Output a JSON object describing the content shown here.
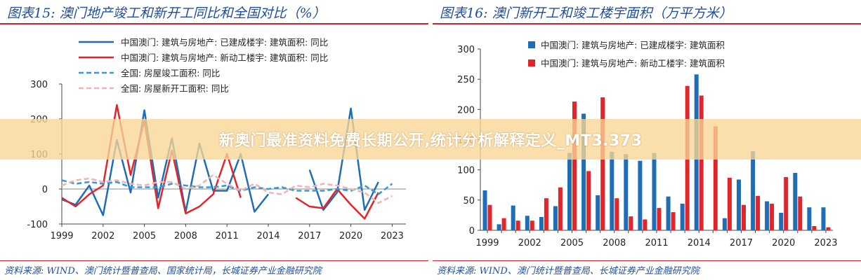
{
  "colors": {
    "blue": "#1f6db5",
    "red": "#e0262b",
    "lightblue": "#3a9ad9",
    "pink": "#f2b3b3"
  },
  "panel_left": {
    "title": "图表15:  澳门地产竣工和新开工同比和全国对比（%）",
    "source": "资料来源:  WIND、澳门统计暨普查局、国家统计局，长城证券产业金融研究院"
  },
  "panel_right": {
    "title": "图表16:  澳门新开工和竣工楼宇面积（万平方米）",
    "source": "资料来源:  WIND、澳门统计暨普查局、长城证券产业金融研究院"
  },
  "watermark": "新奥门最准资料免费长期公开,统计分析解释定义_MT3.373",
  "chart_data": [
    {
      "type": "line",
      "title": "图表15:  澳门地产竣工和新开工同比和全国对比（%）",
      "x": [
        1999,
        2000,
        2001,
        2002,
        2003,
        2004,
        2005,
        2006,
        2007,
        2008,
        2009,
        2010,
        2011,
        2012,
        2013,
        2014,
        2015,
        2016,
        2017,
        2018,
        2019,
        2020,
        2021,
        2022,
        2023
      ],
      "xticks": [
        "1999",
        "2002",
        "2005",
        "2008",
        "2011",
        "2014",
        "2017",
        "2020",
        "2023"
      ],
      "xlim": [
        1999,
        2024
      ],
      "ylim": [
        -100,
        300
      ],
      "yticks": [
        -100,
        0,
        100,
        200,
        300
      ],
      "legend_position": "top",
      "series": [
        {
          "name": "中国澳门: 建筑与房地产: 已建成楼宇: 建筑面积: 同比",
          "color": "#1f6db5",
          "dash": "solid",
          "values": [
            -30,
            -45,
            10,
            -75,
            140,
            -10,
            225,
            -25,
            145,
            -65,
            130,
            -5,
            -5,
            100,
            -65,
            -15,
            null,
            null,
            55,
            -60,
            -10,
            230,
            -60,
            20,
            null
          ]
        },
        {
          "name": "中国澳门: 建筑与房地产: 新动工楼宇: 建筑面积: 同比",
          "color": "#e0262b",
          "dash": "solid",
          "values": [
            -25,
            -50,
            -15,
            10,
            240,
            40,
            195,
            -55,
            110,
            -70,
            -50,
            -15,
            100,
            -25,
            null,
            null,
            null,
            -25,
            -50,
            -55,
            0,
            -45,
            -85,
            -10,
            null
          ]
        },
        {
          "name": "全国: 房屋竣工面积: 同比",
          "color": "#3a9ad9",
          "dash": "dash",
          "values": [
            25,
            15,
            20,
            15,
            20,
            5,
            5,
            5,
            15,
            10,
            5,
            5,
            10,
            -5,
            5,
            0,
            5,
            -5,
            -5,
            -5,
            0,
            -5,
            10,
            -15,
            15
          ]
        },
        {
          "name": "全国: 房屋新开工面积: 同比",
          "color": "#f2b3b3",
          "dash": "dash",
          "values": [
            10,
            25,
            30,
            20,
            25,
            15,
            10,
            20,
            20,
            0,
            10,
            40,
            15,
            -5,
            15,
            -10,
            -15,
            10,
            5,
            15,
            10,
            0,
            -10,
            -40,
            -20
          ]
        }
      ]
    },
    {
      "type": "bar",
      "title": "图表16:  澳门新开工和竣工楼宇面积（万平方米）",
      "categories": [
        1999,
        2000,
        2001,
        2002,
        2003,
        2004,
        2005,
        2006,
        2007,
        2008,
        2009,
        2010,
        2011,
        2012,
        2013,
        2014,
        2015,
        2016,
        2017,
        2018,
        2019,
        2020,
        2021,
        2022,
        2023
      ],
      "xticks": [
        "1999",
        "2002",
        "2005",
        "2008",
        "2011",
        "2014",
        "2017",
        "2020",
        "2023"
      ],
      "ylim": [
        0,
        300
      ],
      "yticks": [
        0,
        50,
        100,
        150,
        200,
        250,
        300
      ],
      "legend_position": "top",
      "series": [
        {
          "name": "中国澳门: 建筑与房地产: 已建成楼宇: 建筑面积",
          "color": "#1f6db5",
          "values": [
            66,
            10,
            41,
            24,
            22,
            40,
            128,
            193,
            58,
            130,
            126,
            115,
            128,
            56,
            44,
            258,
            null,
            20,
            84,
            131,
            48,
            29,
            95,
            38,
            38
          ]
        },
        {
          "name": "中国澳门: 建筑与房地产: 新动工楼宇: 建筑面积",
          "color": "#e0262b",
          "values": [
            42,
            20,
            16,
            16,
            53,
            71,
            213,
            98,
            220,
            53,
            23,
            18,
            37,
            30,
            239,
            223,
            172,
            87,
            42,
            57,
            44,
            88,
            56,
            7,
            5
          ]
        }
      ]
    }
  ]
}
